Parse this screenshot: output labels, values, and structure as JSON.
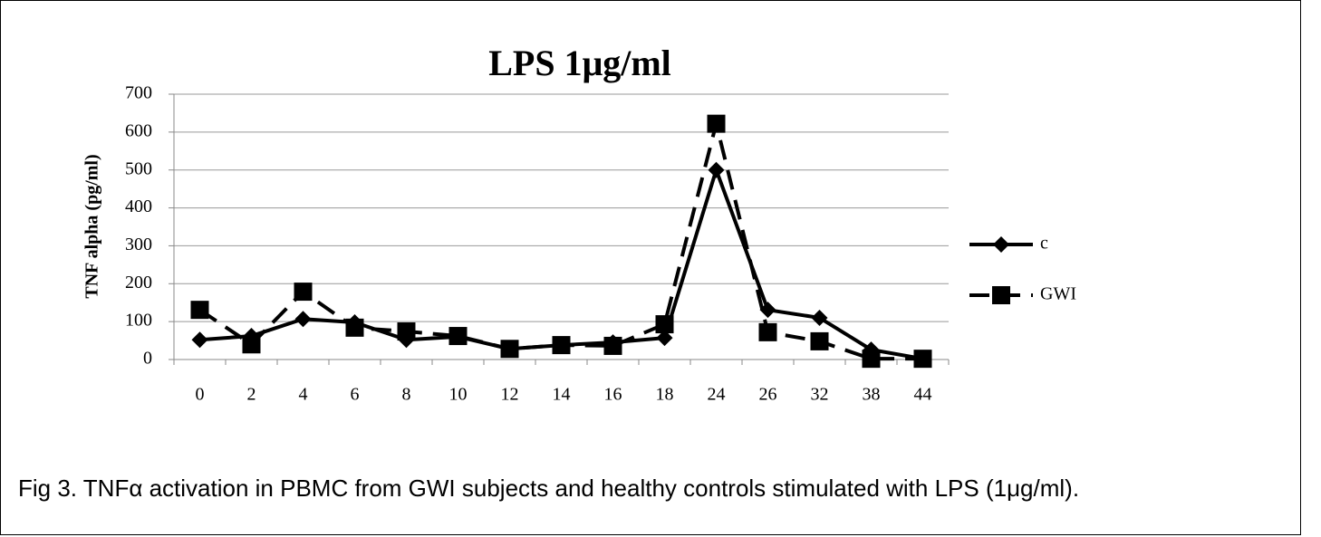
{
  "chart_data": {
    "type": "line",
    "title": "LPS 1μg/ml",
    "y_label": "TNF alpha (pg/ml)",
    "categories": [
      "0",
      "2",
      "4",
      "6",
      "8",
      "10",
      "12",
      "14",
      "16",
      "18",
      "24",
      "26",
      "32",
      "38",
      "44"
    ],
    "series": [
      {
        "name": "c",
        "color": "#000000",
        "marker": "diamond",
        "dash": "solid",
        "values": [
          52,
          62,
          107,
          98,
          52,
          60,
          28,
          38,
          45,
          57,
          500,
          131,
          110,
          26,
          2
        ]
      },
      {
        "name": "GWI",
        "color": "#000000",
        "marker": "square",
        "dash": "dashed",
        "values": [
          131,
          40,
          179,
          84,
          74,
          62,
          28,
          38,
          36,
          93,
          622,
          72,
          48,
          2,
          2
        ]
      }
    ],
    "ylim": [
      0,
      700
    ],
    "yticks": [
      0,
      100,
      200,
      300,
      400,
      500,
      600,
      700
    ],
    "grid": true,
    "legend": "right"
  },
  "caption": "Fig 3. TNFα activation in PBMC from GWI subjects and healthy controls stimulated with LPS (1μg/ml)."
}
